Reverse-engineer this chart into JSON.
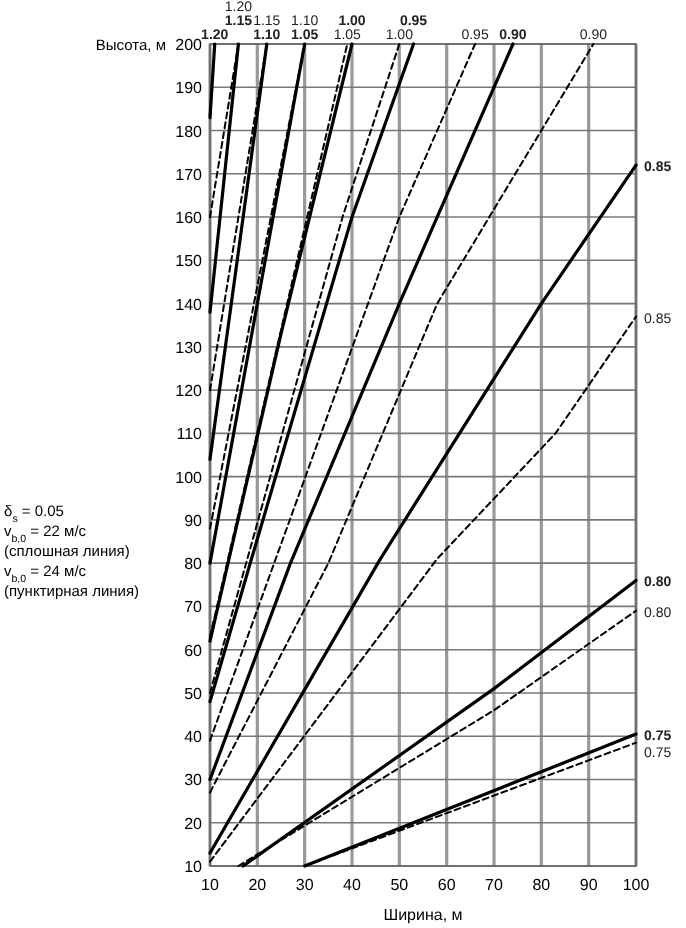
{
  "chart_data": {
    "type": "line",
    "xlabel": "Ширина, м",
    "ylabel": "Высота, м",
    "xlim": [
      10,
      100
    ],
    "xticks": [
      10,
      20,
      30,
      40,
      50,
      60,
      70,
      80,
      90,
      100
    ],
    "ylim": [
      10,
      200
    ],
    "yticks": [
      10,
      20,
      30,
      40,
      50,
      60,
      70,
      80,
      90,
      100,
      110,
      120,
      130,
      140,
      150,
      160,
      170,
      180,
      190,
      200
    ],
    "grid": true,
    "marker": "none",
    "annotations": [
      "δ$_{s}$ = 0.05",
      "v$_{b,0}$ = 22 м/с",
      "(сплошная линия)",
      "v$_{b,0}$ = 24 м/с",
      "(пунктирная линия)"
    ],
    "series": [
      {
        "name": "0.75",
        "color": "#000000",
        "line_style": "solid",
        "x": [
          30,
          100
        ],
        "values": [
          10,
          40.5
        ]
      },
      {
        "name": "0.75",
        "color": "#000000",
        "line_style": "dashed",
        "x": [
          30,
          100
        ],
        "values": [
          10,
          38.5
        ]
      },
      {
        "name": "0.80",
        "color": "#000000",
        "line_style": "solid",
        "x": [
          17,
          70,
          100
        ],
        "values": [
          10,
          51,
          76
        ]
      },
      {
        "name": "0.80",
        "color": "#000000",
        "line_style": "dashed",
        "x": [
          16,
          70,
          100
        ],
        "values": [
          10,
          46,
          69
        ]
      },
      {
        "name": "0.85",
        "color": "#000000",
        "line_style": "solid",
        "x": [
          10,
          46,
          80,
          100
        ],
        "values": [
          13,
          81,
          140,
          172
        ]
      },
      {
        "name": "0.85",
        "color": "#000000",
        "line_style": "dashed",
        "x": [
          10,
          58,
          83,
          100
        ],
        "values": [
          11,
          81,
          110,
          137
        ]
      },
      {
        "name": "0.90",
        "color": "#000000",
        "line_style": "solid",
        "x": [
          10,
          27,
          50,
          74
        ],
        "values": [
          30,
          80,
          140,
          200
        ]
      },
      {
        "name": "0.90",
        "color": "#000000",
        "line_style": "dashed",
        "x": [
          10,
          35,
          58,
          91
        ],
        "values": [
          27,
          80,
          140,
          200
        ]
      },
      {
        "name": "0.95",
        "color": "#000000",
        "line_style": "solid",
        "x": [
          10,
          18.5,
          40,
          53
        ],
        "values": [
          48,
          80,
          160,
          200
        ]
      },
      {
        "name": "0.95",
        "color": "#000000",
        "line_style": "dashed",
        "x": [
          10,
          50,
          66
        ],
        "values": [
          39,
          160,
          200
        ]
      },
      {
        "name": "1.00",
        "color": "#000000",
        "line_style": "solid",
        "x": [
          10,
          25,
          40
        ],
        "values": [
          62,
          133,
          200
        ]
      },
      {
        "name": "1.00",
        "color": "#000000",
        "line_style": "dashed",
        "x": [
          10,
          38,
          50
        ],
        "values": [
          50,
          160,
          200
        ]
      },
      {
        "name": "1.05",
        "color": "#000000",
        "line_style": "solid",
        "x": [
          10,
          30
        ],
        "values": [
          80,
          200
        ]
      },
      {
        "name": "1.05",
        "color": "#000000",
        "line_style": "dashed",
        "x": [
          10,
          39
        ],
        "values": [
          63,
          200
        ]
      },
      {
        "name": "1.10",
        "color": "#000000",
        "line_style": "solid",
        "x": [
          10,
          22
        ],
        "values": [
          104,
          200
        ]
      },
      {
        "name": "1.10",
        "color": "#000000",
        "line_style": "dashed",
        "x": [
          10,
          30
        ],
        "values": [
          88,
          200
        ]
      },
      {
        "name": "1.15",
        "color": "#000000",
        "line_style": "solid",
        "x": [
          10,
          16
        ],
        "values": [
          138,
          200
        ]
      },
      {
        "name": "1.15",
        "color": "#000000",
        "line_style": "dashed",
        "x": [
          10,
          22
        ],
        "values": [
          120,
          200
        ]
      },
      {
        "name": "1.20",
        "color": "#000000",
        "line_style": "solid",
        "x": [
          10,
          11
        ],
        "values": [
          183,
          200
        ]
      },
      {
        "name": "1.20",
        "color": "#000000",
        "line_style": "dashed",
        "x": [
          10,
          16
        ],
        "values": [
          160,
          200
        ]
      }
    ]
  }
}
